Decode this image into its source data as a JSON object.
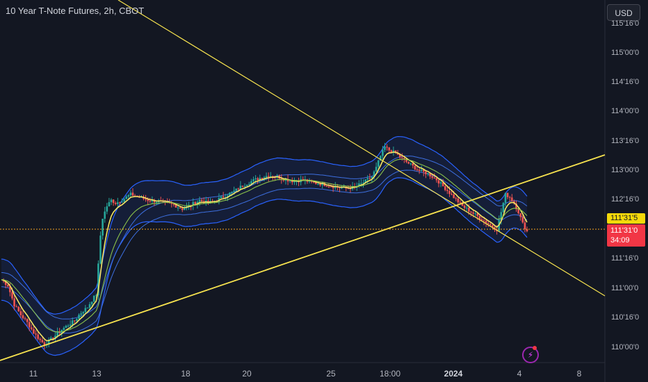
{
  "header": {
    "title": "10 Year T-Note Futures, 2h, CBOT",
    "currency": "USD"
  },
  "price_labels": {
    "last": "111'31'5",
    "close": "111'31'0",
    "countdown": "34:09"
  },
  "colors": {
    "up": "#26a69a",
    "down": "#ef5350",
    "trend": "#f7e34f",
    "band": "#2962ff",
    "price_line": "#f5a623",
    "background": "#131722"
  },
  "chart_data": {
    "type": "candlestick",
    "title": "10 Year T-Note Futures, 2h, CBOT",
    "x_tick_labels": [
      "11",
      "13",
      "18",
      "20",
      "25",
      "18:00",
      "2024",
      "4",
      "8"
    ],
    "y_tick_labels": [
      "115'16'0",
      "115'00'0",
      "114'16'0",
      "114'00'0",
      "113'16'0",
      "113'00'0",
      "112'16'0",
      "111'16'0",
      "111'00'0",
      "110'16'0",
      "110'00'0"
    ],
    "y_unit": "points (32nds)",
    "ylim": [
      109.9,
      115.6
    ],
    "current_price": "111'31'5",
    "price_path": [
      [
        0,
        111.15
      ],
      [
        3,
        111.05
      ],
      [
        6,
        110.72
      ],
      [
        9,
        110.55
      ],
      [
        12,
        110.42
      ],
      [
        15,
        110.25
      ],
      [
        18,
        110.12
      ],
      [
        20,
        110.05
      ],
      [
        22,
        110.1
      ],
      [
        25,
        110.2
      ],
      [
        28,
        110.3
      ],
      [
        31,
        110.38
      ],
      [
        34,
        110.45
      ],
      [
        36,
        110.55
      ],
      [
        38,
        110.62
      ],
      [
        40,
        110.68
      ],
      [
        42,
        110.8
      ],
      [
        44,
        110.9
      ],
      [
        45,
        111.4
      ],
      [
        46,
        111.9
      ],
      [
        47,
        112.2
      ],
      [
        49,
        112.4
      ],
      [
        51,
        112.5
      ],
      [
        53,
        112.45
      ],
      [
        56,
        112.5
      ],
      [
        60,
        112.6
      ],
      [
        64,
        112.55
      ],
      [
        68,
        112.5
      ],
      [
        72,
        112.48
      ],
      [
        76,
        112.45
      ],
      [
        80,
        112.42
      ],
      [
        84,
        112.35
      ],
      [
        88,
        112.42
      ],
      [
        92,
        112.5
      ],
      [
        96,
        112.45
      ],
      [
        100,
        112.5
      ],
      [
        104,
        112.58
      ],
      [
        108,
        112.65
      ],
      [
        112,
        112.75
      ],
      [
        116,
        112.82
      ],
      [
        120,
        112.88
      ],
      [
        124,
        112.92
      ],
      [
        128,
        112.9
      ],
      [
        132,
        112.85
      ],
      [
        136,
        112.82
      ],
      [
        140,
        112.85
      ],
      [
        144,
        112.8
      ],
      [
        148,
        112.78
      ],
      [
        152,
        112.75
      ],
      [
        156,
        112.72
      ],
      [
        160,
        112.7
      ],
      [
        164,
        112.72
      ],
      [
        168,
        112.8
      ],
      [
        172,
        112.9
      ],
      [
        174,
        113.05
      ],
      [
        176,
        113.25
      ],
      [
        178,
        113.4
      ],
      [
        180,
        113.35
      ],
      [
        183,
        113.3
      ],
      [
        186,
        113.2
      ],
      [
        190,
        113.1
      ],
      [
        194,
        113.0
      ],
      [
        198,
        112.95
      ],
      [
        202,
        112.85
      ],
      [
        206,
        112.7
      ],
      [
        210,
        112.55
      ],
      [
        214,
        112.4
      ],
      [
        218,
        112.3
      ],
      [
        222,
        112.2
      ],
      [
        226,
        112.1
      ],
      [
        230,
        112.0
      ],
      [
        232,
        112.3
      ],
      [
        234,
        112.6
      ],
      [
        236,
        112.55
      ],
      [
        238,
        112.45
      ],
      [
        240,
        112.3
      ],
      [
        242,
        112.1
      ],
      [
        244,
        111.97
      ]
    ],
    "series": [
      {
        "kind": "ema",
        "offset": 0.0,
        "smooth": 0.3
      },
      {
        "kind": "ma",
        "offset": 0.0,
        "smooth": 0.12
      },
      {
        "kind": "band_upper",
        "offset": 0.35,
        "smooth": 0.15
      },
      {
        "kind": "band_lower",
        "offset": -0.35,
        "smooth": 0.15
      }
    ],
    "trendlines": [
      {
        "from": [
          "start",
          116.2
        ],
        "to": [
          "end",
          110.6
        ]
      },
      {
        "from": [
          "start",
          109.92
        ],
        "to": [
          "end",
          113.35
        ]
      }
    ]
  }
}
